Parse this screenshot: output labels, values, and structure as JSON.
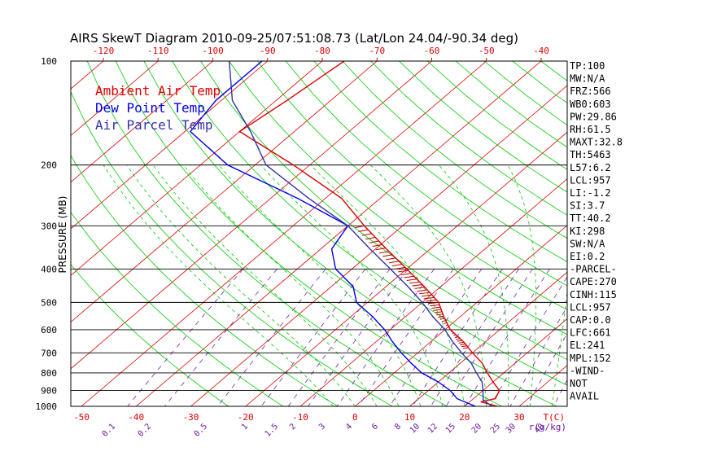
{
  "title": "AIRS SkewT Diagram 2010-09-25/07:51:08.73 (Lat/Lon 24.04/-90.34 deg)",
  "chart_data": {
    "type": "skewt",
    "ylabel": "PRESSURE (MB)",
    "xlabel": "T(C)",
    "mixing_label": "r(g/kg)",
    "pressure_levels": [
      100,
      200,
      300,
      400,
      500,
      600,
      700,
      800,
      900,
      1000
    ],
    "top_temp_ticks": [
      -120,
      -110,
      -100,
      -90,
      -80,
      -70,
      -60,
      -50,
      -40
    ],
    "bottom_temp_ticks": [
      -50,
      -40,
      -30,
      -20,
      -10,
      0,
      10,
      20,
      30
    ],
    "mixing_ratio_ticks": [
      "0.1",
      "0.2",
      "0.5",
      "1",
      "1.5",
      "2",
      "3",
      "4",
      "6",
      "8",
      "10",
      "12",
      "15",
      "20",
      "25",
      "30",
      "40"
    ],
    "legend": [
      {
        "label": "Ambient Air Temp",
        "color": "#e00000"
      },
      {
        "label": "Dew Point Temp",
        "color": "#0000ee"
      },
      {
        "label": "Air Parcel Temp",
        "color": "#3333aa"
      }
    ],
    "series": [
      {
        "name": "Ambient Air Temp",
        "color": "#e00000",
        "points": [
          [
            100,
            -76
          ],
          [
            130,
            -78
          ],
          [
            160,
            -80
          ],
          [
            200,
            -63
          ],
          [
            250,
            -47
          ],
          [
            300,
            -37
          ],
          [
            350,
            -28
          ],
          [
            400,
            -20
          ],
          [
            450,
            -13
          ],
          [
            500,
            -7
          ],
          [
            550,
            -3
          ],
          [
            600,
            1
          ],
          [
            650,
            6
          ],
          [
            700,
            10
          ],
          [
            750,
            14
          ],
          [
            800,
            17
          ],
          [
            850,
            20
          ],
          [
            900,
            23
          ],
          [
            950,
            24
          ],
          [
            970,
            22
          ],
          [
            1000,
            26
          ]
        ]
      },
      {
        "name": "Dew Point Temp",
        "color": "#0000ee",
        "points": [
          [
            100,
            -91
          ],
          [
            130,
            -91
          ],
          [
            160,
            -89
          ],
          [
            200,
            -75
          ],
          [
            250,
            -55
          ],
          [
            300,
            -40
          ],
          [
            350,
            -38
          ],
          [
            400,
            -33
          ],
          [
            450,
            -26
          ],
          [
            500,
            -22
          ],
          [
            550,
            -16
          ],
          [
            600,
            -11
          ],
          [
            650,
            -7
          ],
          [
            700,
            -3
          ],
          [
            750,
            1
          ],
          [
            800,
            5
          ],
          [
            850,
            10
          ],
          [
            900,
            14
          ],
          [
            950,
            17
          ],
          [
            1000,
            22
          ]
        ]
      },
      {
        "name": "Air Parcel Temp",
        "color": "#3333aa",
        "points": [
          [
            100,
            -97
          ],
          [
            130,
            -88
          ],
          [
            160,
            -78
          ],
          [
            200,
            -68
          ],
          [
            250,
            -53
          ],
          [
            300,
            -40
          ],
          [
            350,
            -31
          ],
          [
            400,
            -23
          ],
          [
            450,
            -16
          ],
          [
            500,
            -10
          ],
          [
            550,
            -5
          ],
          [
            600,
            0
          ],
          [
            650,
            4
          ],
          [
            700,
            8
          ],
          [
            750,
            12
          ],
          [
            800,
            15
          ],
          [
            850,
            18
          ],
          [
            900,
            20
          ],
          [
            957,
            22
          ],
          [
            1000,
            25
          ]
        ]
      }
    ],
    "indices": [
      "TP:100",
      "MW:N/A",
      "FRZ:566",
      "WB0:603",
      "PW:29.86",
      "RH:61.5",
      "MAXT:32.8",
      "TH:5463",
      "L57:6.2",
      "LCL:957",
      "LI:-1.2",
      "SI:3.7",
      "TT:40.2",
      "KI:298",
      "SW:N/A",
      "EI:0.2",
      "-PARCEL-",
      "CAPE:270",
      "CINH:115",
      "LCL:957",
      "CAP:0.0",
      "LFC:661",
      "EL:241",
      "MPL:152",
      "-WIND-",
      "NOT",
      "AVAIL"
    ]
  }
}
